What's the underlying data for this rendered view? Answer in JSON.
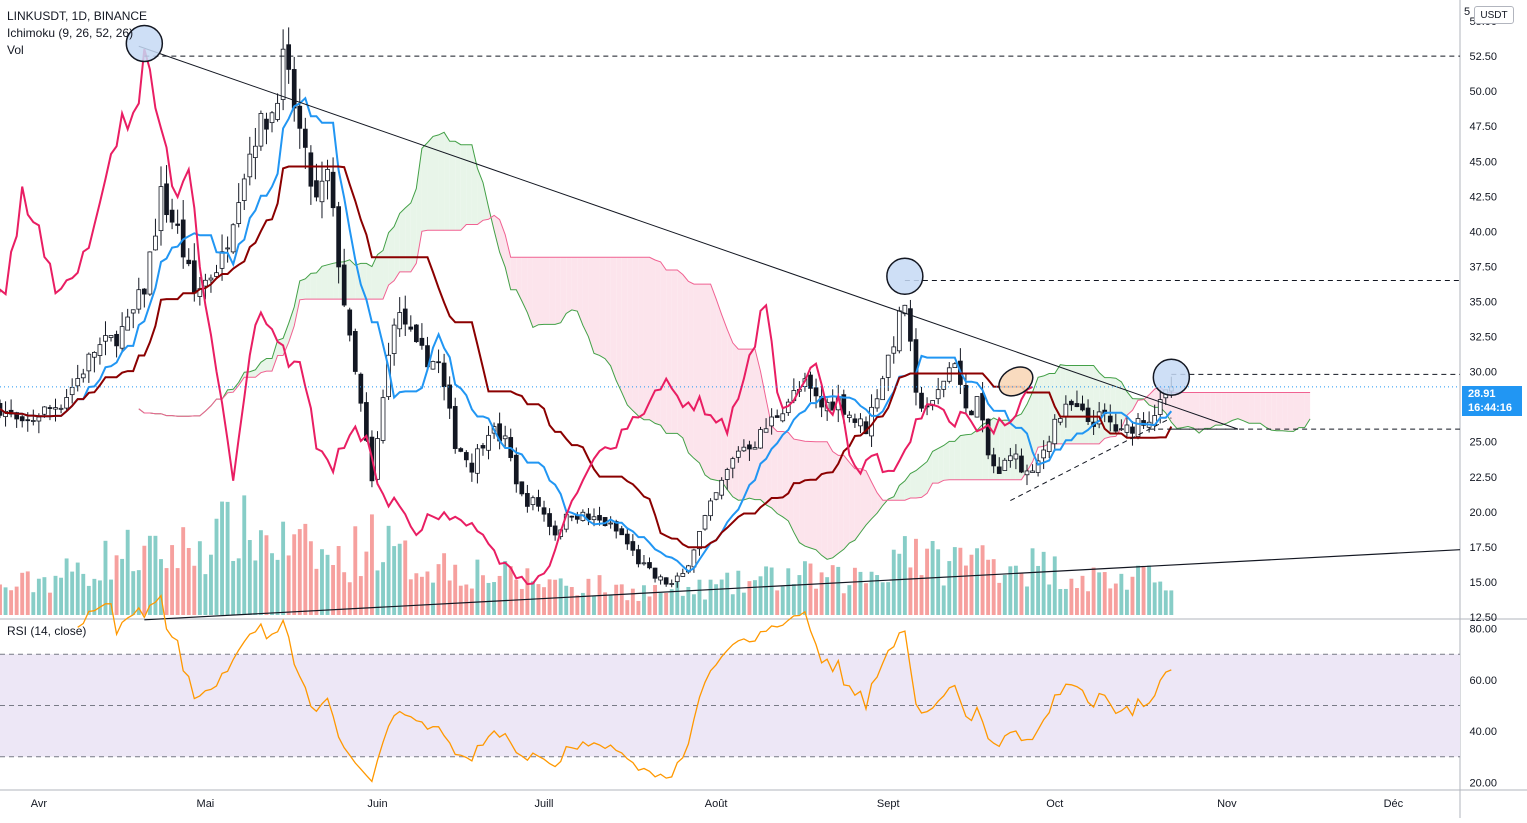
{
  "header": {
    "symbol_line": "LINKUSDT, 1D, BINANCE",
    "ichimoku_line": "Ichimoku (9, 26, 52, 26)",
    "vol_line": "Vol",
    "rsi_line": "RSI (14, close)"
  },
  "currency_box": "USDT",
  "top_fragment": "5",
  "last_price": {
    "price": "28.91",
    "countdown": "16:44:16"
  },
  "colors": {
    "up": "#26a69a",
    "down": "#ef5350",
    "tenkan": "#2196f3",
    "kijun": "#8b0000",
    "chikou": "#e91e63",
    "span_a": "#43a047",
    "span_b": "#f06292",
    "cloud_bull": "#e8f5e9",
    "cloud_bear": "#fce4ec",
    "rsi": "#ff9800",
    "rsi_band": "#ede7f6",
    "circle_blue": "#c5d9f5",
    "circle_orange": "#f8d7b8"
  },
  "chart_data": [
    {
      "type": "candlestick",
      "title": "LINKUSDT, 1D, BINANCE",
      "ylim": [
        12.5,
        56.5
      ],
      "y_ticks": [
        "12.50",
        "15.00",
        "17.50",
        "20.00",
        "22.50",
        "25.00",
        "27.50",
        "30.00",
        "32.50",
        "35.00",
        "37.50",
        "40.00",
        "42.50",
        "45.00",
        "47.50",
        "50.00",
        "52.50",
        "55.00"
      ],
      "x_labels": [
        {
          "label": "Avr",
          "day": 0
        },
        {
          "label": "Mai",
          "day": 30
        },
        {
          "label": "Juin",
          "day": 61
        },
        {
          "label": "Juill",
          "day": 91
        },
        {
          "label": "Août",
          "day": 122
        },
        {
          "label": "Sept",
          "day": 153
        },
        {
          "label": "Oct",
          "day": 183
        },
        {
          "label": "Nov",
          "day": 214
        },
        {
          "label": "Déc",
          "day": 244
        }
      ],
      "x_range_days": [
        -7,
        256
      ],
      "last_day": 204,
      "close_waypoints": [
        [
          -7,
          27.5
        ],
        [
          -3,
          26
        ],
        [
          0,
          27
        ],
        [
          4,
          27.8
        ],
        [
          7,
          29.5
        ],
        [
          10,
          31.5
        ],
        [
          13,
          32.2
        ],
        [
          16,
          33.3
        ],
        [
          19,
          36
        ],
        [
          22,
          42.5
        ],
        [
          25,
          40
        ],
        [
          28,
          35.5
        ],
        [
          30,
          36.5
        ],
        [
          33,
          38
        ],
        [
          36,
          43
        ],
        [
          39,
          47
        ],
        [
          42,
          48.5
        ],
        [
          44,
          52
        ],
        [
          46,
          49
        ],
        [
          48,
          45
        ],
        [
          50,
          42
        ],
        [
          52,
          44
        ],
        [
          54,
          38
        ],
        [
          56,
          32
        ],
        [
          58,
          27.5
        ],
        [
          60,
          22
        ],
        [
          62,
          28
        ],
        [
          64,
          34
        ],
        [
          66,
          33.5
        ],
        [
          68,
          31.5
        ],
        [
          70,
          31
        ],
        [
          72,
          30.5
        ],
        [
          75,
          25
        ],
        [
          78,
          23.3
        ],
        [
          81,
          26
        ],
        [
          84,
          25
        ],
        [
          87,
          21
        ],
        [
          90,
          20.5
        ],
        [
          93,
          18.5
        ],
        [
          96,
          20
        ],
        [
          99,
          19.5
        ],
        [
          102,
          19.2
        ],
        [
          105,
          18.3
        ],
        [
          108,
          16.5
        ],
        [
          111,
          15.3
        ],
        [
          114,
          14.8
        ],
        [
          116,
          15.5
        ],
        [
          118,
          17.5
        ],
        [
          120,
          19.5
        ],
        [
          123,
          22
        ],
        [
          126,
          24.5
        ],
        [
          129,
          25
        ],
        [
          132,
          26.5
        ],
        [
          135,
          28
        ],
        [
          138,
          29
        ],
        [
          141,
          27.5
        ],
        [
          144,
          28
        ],
        [
          147,
          26.5
        ],
        [
          149,
          26
        ],
        [
          151,
          28.5
        ],
        [
          153,
          31
        ],
        [
          156,
          35
        ],
        [
          158,
          28
        ],
        [
          161,
          27.5
        ],
        [
          163,
          29.5
        ],
        [
          165,
          31
        ],
        [
          167,
          27
        ],
        [
          169,
          28
        ],
        [
          171,
          24
        ],
        [
          173,
          22.5
        ],
        [
          175,
          24.5
        ],
        [
          177,
          23
        ],
        [
          179,
          22.5
        ],
        [
          181,
          24.5
        ],
        [
          183,
          26.5
        ],
        [
          186,
          27.5
        ],
        [
          189,
          26.5
        ],
        [
          192,
          26.7
        ],
        [
          195,
          25.5
        ],
        [
          198,
          26.5
        ],
        [
          200,
          26.8
        ],
        [
          202,
          27.5
        ],
        [
          204,
          28.91
        ]
      ],
      "volume_waypoints": [
        [
          -7,
          0.22
        ],
        [
          0,
          0.3
        ],
        [
          10,
          0.42
        ],
        [
          15,
          0.55
        ],
        [
          20,
          0.5
        ],
        [
          30,
          0.62
        ],
        [
          35,
          0.75
        ],
        [
          45,
          0.6
        ],
        [
          55,
          0.45
        ],
        [
          60,
          0.7
        ],
        [
          65,
          0.48
        ],
        [
          75,
          0.42
        ],
        [
          85,
          0.32
        ],
        [
          95,
          0.28
        ],
        [
          105,
          0.22
        ],
        [
          115,
          0.2
        ],
        [
          125,
          0.26
        ],
        [
          135,
          0.34
        ],
        [
          145,
          0.3
        ],
        [
          152,
          0.38
        ],
        [
          156,
          0.68
        ],
        [
          160,
          0.45
        ],
        [
          170,
          0.5
        ],
        [
          180,
          0.42
        ],
        [
          190,
          0.32
        ],
        [
          200,
          0.3
        ],
        [
          204,
          0.38
        ]
      ],
      "ichimoku": {
        "tenkan": 9,
        "kijun": 26,
        "senkou_b": 52,
        "displacement": 26
      },
      "annotations": {
        "horizontal_levels": [
          52.5,
          36.5,
          29.8,
          25.9
        ],
        "descending_trendline": [
          [
            18,
            53.2
          ],
          [
            216,
            25.9
          ]
        ],
        "support_line": [
          [
            19,
            12.3
          ],
          [
            256,
            17.3
          ]
        ],
        "rising_dashed": [
          [
            175,
            20.8
          ],
          [
            204,
            26.7
          ]
        ],
        "blue_circles": [
          [
            19,
            53.4
          ],
          [
            156,
            36.8
          ],
          [
            204,
            29.6
          ]
        ],
        "orange_circle": [
          [
            176,
            29.3
          ]
        ]
      }
    },
    {
      "type": "line",
      "title": "RSI (14, close)",
      "ylim": [
        17,
        83
      ],
      "y_ticks": [
        "20.00",
        "40.00",
        "60.00",
        "80.00"
      ],
      "bands": [
        30,
        50,
        70
      ],
      "period": 14
    }
  ]
}
